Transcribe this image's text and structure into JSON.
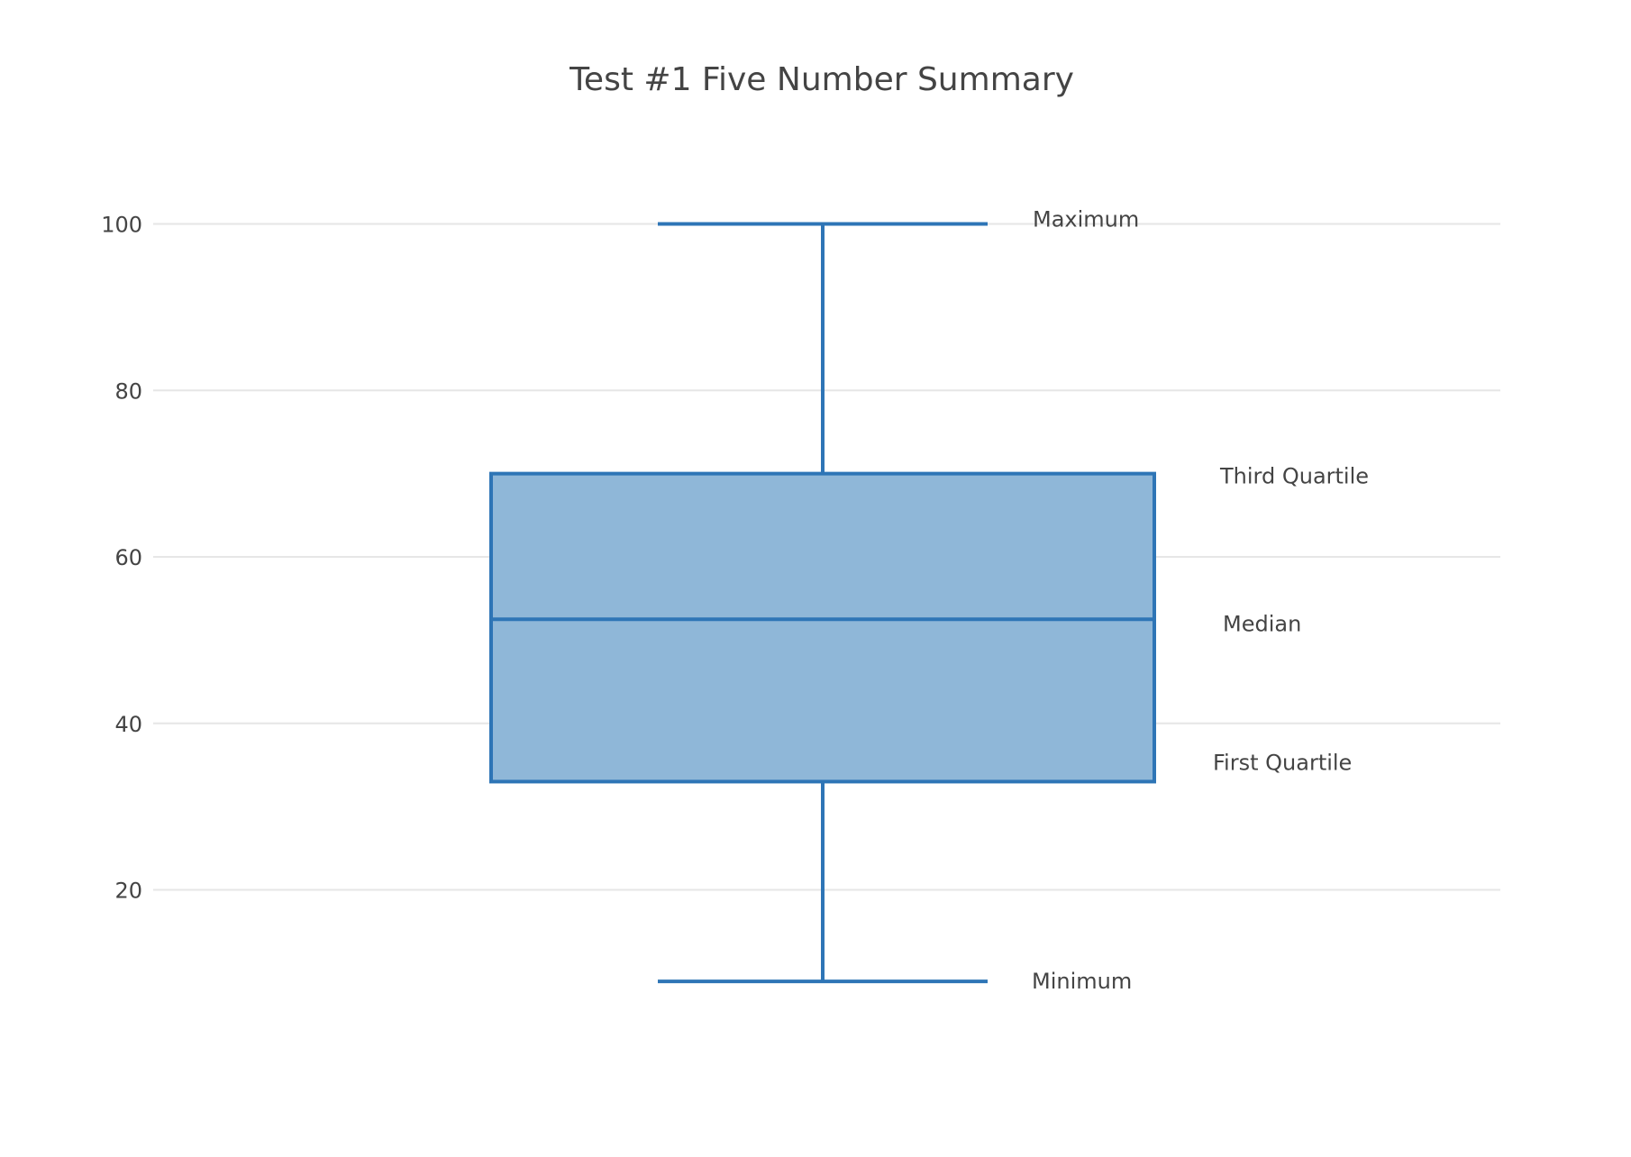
{
  "chart_data": {
    "type": "box",
    "title": "Test #1 Five Number Summary",
    "xlabel": "",
    "ylabel": "",
    "ylim": [
      0,
      110
    ],
    "grid": true,
    "yticks": [
      20,
      40,
      60,
      80,
      100
    ],
    "box": {
      "minimum": 9,
      "first_quartile": 33,
      "median": 52.5,
      "third_quartile": 70,
      "maximum": 100
    },
    "annotations": [
      {
        "text": "Maximum",
        "y": 100
      },
      {
        "text": "Third Quartile",
        "y": 70
      },
      {
        "text": "Median",
        "y": 52.5
      },
      {
        "text": "First Quartile",
        "y": 33
      },
      {
        "text": "Minimum",
        "y": 9
      }
    ],
    "colors": {
      "line": "#2E75B6",
      "fill": "#8FB7D8",
      "grid": "#e6e6e6",
      "text": "#444444"
    }
  }
}
